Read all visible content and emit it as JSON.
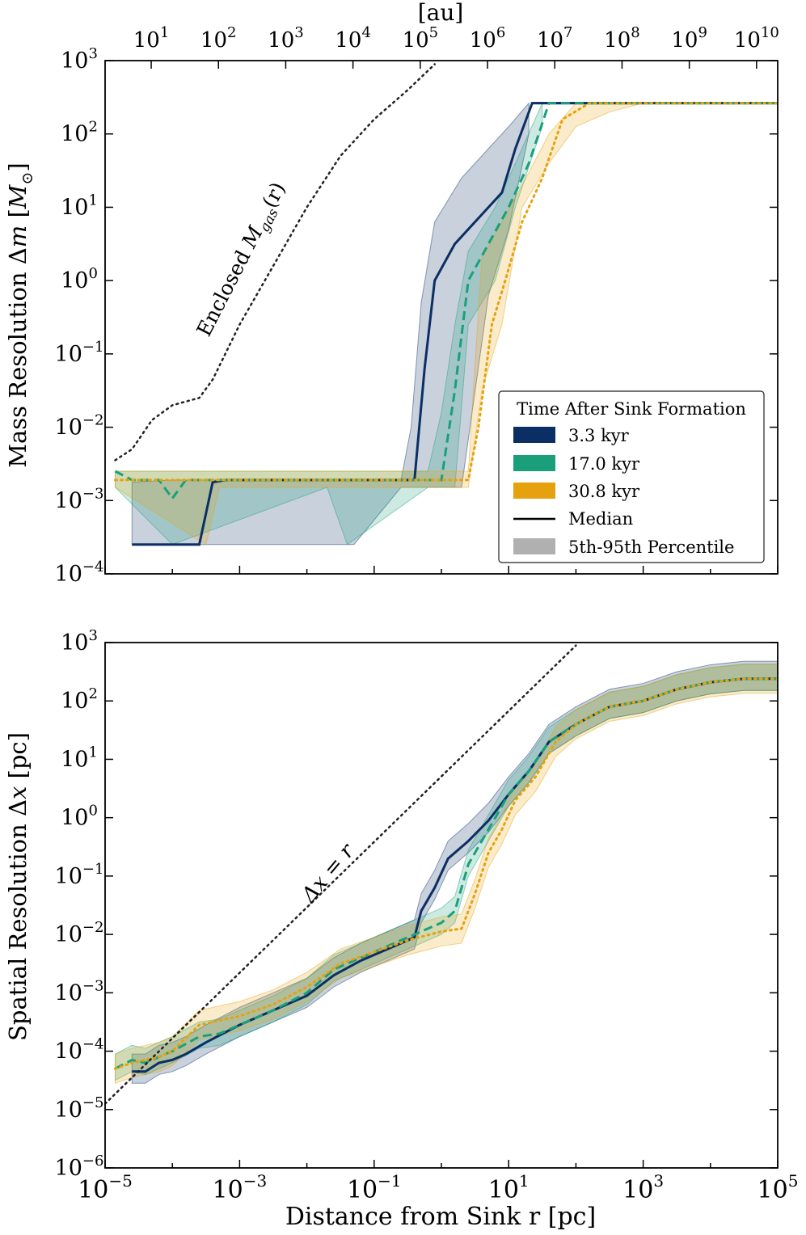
{
  "colors": {
    "run_3_3": "#0b2f64",
    "run_17_0": "#19a07a",
    "run_30_8": "#e6a20e",
    "enclosed": "#222222",
    "legend_gray": "#b0b0b0"
  },
  "top_axis": {
    "label": "[au]",
    "ticks": [
      {
        "base": "10",
        "exp": "1",
        "pc": 4.848e-05
      },
      {
        "base": "10",
        "exp": "2",
        "pc": 0.0004848
      },
      {
        "base": "10",
        "exp": "3",
        "pc": 0.004848
      },
      {
        "base": "10",
        "exp": "4",
        "pc": 0.04848
      },
      {
        "base": "10",
        "exp": "5",
        "pc": 0.4848
      },
      {
        "base": "10",
        "exp": "6",
        "pc": 4.848
      },
      {
        "base": "10",
        "exp": "7",
        "pc": 48.48
      },
      {
        "base": "10",
        "exp": "8",
        "pc": 484.8
      },
      {
        "base": "10",
        "exp": "9",
        "pc": 4848
      },
      {
        "base": "10",
        "exp": "10",
        "pc": 48480
      }
    ]
  },
  "x_axis": {
    "label": "Distance from Sink r [pc]",
    "ticks": [
      {
        "base": "10",
        "exp": "−5",
        "value": -5
      },
      {
        "base": "10",
        "exp": "−3",
        "value": -3
      },
      {
        "base": "10",
        "exp": "−1",
        "value": -1
      },
      {
        "base": "10",
        "exp": "1",
        "value": 1
      },
      {
        "base": "10",
        "exp": "3",
        "value": 3
      },
      {
        "base": "10",
        "exp": "5",
        "value": 5
      }
    ]
  },
  "legend": {
    "title": "Time After Sink Formation",
    "entries": [
      "3.3 kyr",
      "17.0 kyr",
      "30.8 kyr",
      "Median",
      "5th-95th Percentile"
    ]
  },
  "panels": {
    "top": {
      "ylabel_prefix": "Mass Resolution Δ",
      "ylabel_var": "m",
      "ylabel_open": " [",
      "ylabel_unit": "M",
      "ylabel_sub": "⊙",
      "ylabel_close": "]",
      "annotation_prefix": "Enclosed ",
      "annotation_var": "M",
      "annotation_sub": "gas",
      "annotation_suffix": "(r)",
      "yticks": [
        {
          "base": "10",
          "exp": "3",
          "value": 3
        },
        {
          "base": "10",
          "exp": "2",
          "value": 2
        },
        {
          "base": "10",
          "exp": "1",
          "value": 1
        },
        {
          "base": "10",
          "exp": "0",
          "value": 0
        },
        {
          "base": "10",
          "exp": "−1",
          "value": -1
        },
        {
          "base": "10",
          "exp": "−2",
          "value": -2
        },
        {
          "base": "10",
          "exp": "−3",
          "value": -3
        },
        {
          "base": "10",
          "exp": "−4",
          "value": -4
        }
      ]
    },
    "bottom": {
      "ylabel_prefix": "Spatial Resolution Δ",
      "ylabel_var": "x",
      "ylabel_suffix": " [pc]",
      "annotation": "Δx = r",
      "yticks": [
        {
          "base": "10",
          "exp": "3",
          "value": 3
        },
        {
          "base": "10",
          "exp": "2",
          "value": 2
        },
        {
          "base": "10",
          "exp": "1",
          "value": 1
        },
        {
          "base": "10",
          "exp": "0",
          "value": 0
        },
        {
          "base": "10",
          "exp": "−1",
          "value": -1
        },
        {
          "base": "10",
          "exp": "−2",
          "value": -2
        },
        {
          "base": "10",
          "exp": "−3",
          "value": -3
        },
        {
          "base": "10",
          "exp": "−4",
          "value": -4
        },
        {
          "base": "10",
          "exp": "−5",
          "value": -5
        },
        {
          "base": "10",
          "exp": "−6",
          "value": -6
        }
      ]
    }
  },
  "chart_data": [
    {
      "type": "line",
      "title": "",
      "xlabel": "Distance from Sink r [pc]",
      "ylabel": "Mass Resolution Δm [M⊙]",
      "xscale": "log",
      "yscale": "log",
      "xlim": [
        -5,
        5
      ],
      "ylim": [
        -4,
        3
      ],
      "note": "x and y values are log10 of data",
      "series": [
        {
          "name": "3.3 kyr",
          "style": "solid",
          "color": "#0b2f64",
          "x": [
            -4.6,
            -3.6,
            -3.4,
            -3.2,
            -2.5,
            -1.6,
            -0.6,
            -0.4,
            -0.25,
            -0.1,
            0.2,
            0.6,
            0.9,
            1.1,
            1.35
          ],
          "y": [
            -3.6,
            -3.6,
            -2.75,
            -2.72,
            -2.72,
            -2.72,
            -2.72,
            -2.72,
            -1.2,
            0.0,
            0.5,
            0.9,
            1.2,
            1.8,
            2.42
          ],
          "band_x": [
            -4.6,
            -4.0,
            -3.0,
            -2.5,
            -1.3,
            -0.6,
            -0.45,
            -0.3,
            -0.1,
            0.3,
            0.7,
            1.0,
            1.3
          ],
          "band_low": [
            -3.6,
            -3.6,
            -3.6,
            -3.6,
            -3.6,
            -2.82,
            -2.82,
            -2.82,
            -2.82,
            -2.82,
            -0.2,
            0.7,
            2.0
          ],
          "band_high": [
            -2.75,
            -2.72,
            -2.72,
            -2.72,
            -2.72,
            -2.72,
            -2.0,
            -0.3,
            0.8,
            1.4,
            1.8,
            2.1,
            2.42
          ]
        },
        {
          "name": "17.0 kyr",
          "style": "dashed",
          "color": "#19a07a",
          "x": [
            -4.85,
            -4.6,
            -4.2,
            -4.0,
            -3.8,
            -3.0,
            -0.2,
            0.0,
            0.2,
            0.4,
            0.7,
            1.0,
            1.3,
            1.6
          ],
          "y": [
            -2.6,
            -2.72,
            -2.72,
            -2.97,
            -2.72,
            -2.72,
            -2.72,
            -2.72,
            -1.5,
            0.0,
            0.5,
            1.0,
            1.6,
            2.42
          ],
          "band_x": [
            -4.85,
            -4.0,
            -1.7,
            -1.4,
            -0.2,
            0.0,
            0.2,
            0.4,
            0.8,
            1.1,
            1.5
          ],
          "band_low": [
            -2.82,
            -3.6,
            -2.82,
            -3.6,
            -2.82,
            -2.82,
            -2.82,
            -0.6,
            0.0,
            1.0,
            2.1
          ],
          "band_high": [
            -2.6,
            -2.6,
            -2.6,
            -2.6,
            -2.6,
            -1.8,
            -0.6,
            0.4,
            1.0,
            1.6,
            2.42
          ]
        },
        {
          "name": "30.8 kyr",
          "style": "dotted",
          "color": "#e6a20e",
          "x": [
            -4.85,
            -3.0,
            0.2,
            0.4,
            0.55,
            0.75,
            0.95,
            1.2,
            1.5,
            1.8,
            2.2
          ],
          "y": [
            -2.72,
            -2.72,
            -2.72,
            -2.72,
            -2.0,
            -0.6,
            0.0,
            0.8,
            1.4,
            2.2,
            2.42
          ],
          "band_x": [
            -4.85,
            -3.5,
            -3.3,
            -3.0,
            0.2,
            0.4,
            0.6,
            0.9,
            1.2,
            1.6,
            2.0,
            2.5,
            3.0
          ],
          "band_low": [
            -2.82,
            -3.6,
            -2.82,
            -2.82,
            -2.82,
            -2.82,
            -1.5,
            -0.6,
            1.0,
            1.6,
            2.1,
            2.3,
            2.42
          ],
          "band_high": [
            -2.6,
            -2.6,
            -2.6,
            -2.6,
            -2.6,
            -2.6,
            0.3,
            0.8,
            1.3,
            2.0,
            2.42,
            2.42,
            2.42
          ]
        },
        {
          "name": "Enclosed Mgas(r)",
          "style": "dotted",
          "color": "#222222",
          "x": [
            -4.85,
            -4.6,
            -4.3,
            -4.0,
            -3.8,
            -3.6,
            -3.4,
            -3.0,
            -2.5,
            -2.0,
            -1.5,
            -1.0,
            -0.5,
            -0.1
          ],
          "y": [
            -2.45,
            -2.3,
            -1.9,
            -1.7,
            -1.65,
            -1.6,
            -1.35,
            -0.6,
            0.2,
            1.0,
            1.7,
            2.2,
            2.6,
            2.95
          ]
        }
      ],
      "flat_ceiling": {
        "x_from": 1.35,
        "x_to": 5.0,
        "value": 2.42
      }
    },
    {
      "type": "line",
      "title": "",
      "xlabel": "Distance from Sink r [pc]",
      "ylabel": "Spatial Resolution Δx [pc]",
      "xscale": "log",
      "yscale": "log",
      "xlim": [
        -5,
        5
      ],
      "ylim": [
        -6,
        3
      ],
      "note": "x and y values are log10 of data",
      "series": [
        {
          "name": "3.3 kyr",
          "style": "solid",
          "color": "#0b2f64",
          "x": [
            -4.6,
            -4.4,
            -4.2,
            -4.0,
            -3.8,
            -3.5,
            -3.0,
            -2.5,
            -2.0,
            -1.6,
            -1.2,
            -0.8,
            -0.4,
            -0.3,
            -0.1,
            0.1,
            0.4,
            0.7,
            1.0,
            1.3,
            1.6,
            2.0,
            2.5,
            3.0,
            3.5,
            4.0,
            4.5,
            5.0
          ],
          "y": [
            -4.35,
            -4.35,
            -4.2,
            -4.15,
            -4.05,
            -3.85,
            -3.55,
            -3.3,
            -3.05,
            -2.7,
            -2.45,
            -2.25,
            -2.05,
            -1.6,
            -1.2,
            -0.7,
            -0.4,
            -0.05,
            0.4,
            0.8,
            1.3,
            1.6,
            1.9,
            2.0,
            2.2,
            2.32,
            2.38,
            2.38
          ],
          "band_low_offset": 0.2,
          "band_high_offset": 0.3
        },
        {
          "name": "17.0 kyr",
          "style": "dashed",
          "color": "#19a07a",
          "x": [
            -4.85,
            -4.6,
            -4.4,
            -4.0,
            -3.6,
            -3.3,
            -3.0,
            -2.5,
            -2.0,
            -1.6,
            -1.2,
            -0.8,
            -0.4,
            0.0,
            0.2,
            0.4,
            0.6,
            0.8,
            1.0,
            1.3,
            1.6,
            2.0,
            2.5,
            3.0,
            3.5,
            4.0,
            4.5,
            5.0
          ],
          "y": [
            -4.3,
            -4.15,
            -4.2,
            -4.0,
            -3.75,
            -3.7,
            -3.55,
            -3.3,
            -3.0,
            -2.6,
            -2.4,
            -2.2,
            -2.0,
            -1.8,
            -1.6,
            -0.8,
            -0.4,
            0.0,
            0.4,
            0.8,
            1.3,
            1.6,
            1.9,
            2.0,
            2.2,
            2.32,
            2.38,
            2.38
          ],
          "band_low_offset": 0.2,
          "band_high_offset": 0.25
        },
        {
          "name": "30.8 kyr",
          "style": "dotted",
          "color": "#e6a20e",
          "x": [
            -4.85,
            -4.6,
            -4.2,
            -4.0,
            -3.6,
            -3.0,
            -2.5,
            -2.0,
            -1.5,
            -1.0,
            -0.5,
            0.0,
            0.3,
            0.5,
            0.7,
            0.9,
            1.1,
            1.4,
            1.7,
            2.0,
            2.5,
            3.0,
            3.5,
            4.0,
            4.5,
            5.0
          ],
          "y": [
            -4.3,
            -4.2,
            -4.1,
            -4.0,
            -3.55,
            -3.4,
            -3.2,
            -2.9,
            -2.5,
            -2.3,
            -2.1,
            -1.95,
            -1.9,
            -1.3,
            -0.6,
            -0.2,
            0.3,
            0.7,
            1.3,
            1.6,
            1.9,
            2.0,
            2.2,
            2.32,
            2.38,
            2.38
          ],
          "band_low_offset": 0.25,
          "band_high_offset": 0.25
        },
        {
          "name": "Δx = r",
          "style": "dotted",
          "color": "#222222",
          "x": [
            -5.0,
            2.0
          ],
          "y": [
            -4.9,
            2.95
          ]
        }
      ]
    }
  ]
}
